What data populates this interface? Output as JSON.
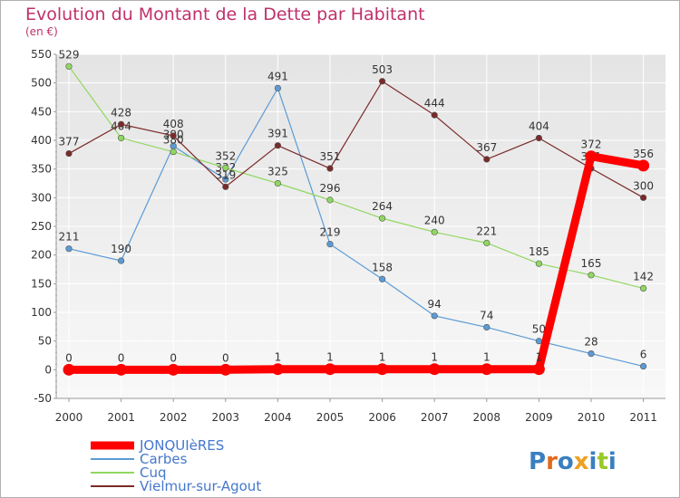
{
  "chart_data": {
    "type": "line",
    "title": "Evolution du Montant de la Dette par Habitant",
    "subtitle": "(en €)",
    "xlabel": "",
    "ylabel": "",
    "x": [
      "2000",
      "2001",
      "2002",
      "2003",
      "2004",
      "2005",
      "2006",
      "2007",
      "2008",
      "2009",
      "2010",
      "2011"
    ],
    "ylim": [
      -50,
      550
    ],
    "yticks": [
      -50,
      0,
      50,
      100,
      150,
      200,
      250,
      300,
      350,
      400,
      450,
      500,
      550
    ],
    "grid": true,
    "legend_position": "bottom-left",
    "series": [
      {
        "name": "JONQUIèRES",
        "color": "#ff0000",
        "values": [
          0,
          0,
          0,
          0,
          1,
          1,
          1,
          1,
          1,
          1,
          372,
          356
        ]
      },
      {
        "name": "Carbes",
        "color": "#5b9bd5",
        "values": [
          211,
          190,
          390,
          332,
          491,
          219,
          158,
          94,
          74,
          50,
          28,
          6
        ]
      },
      {
        "name": "Cuq",
        "color": "#90d860",
        "values": [
          529,
          404,
          380,
          352,
          325,
          296,
          264,
          240,
          221,
          185,
          165,
          142
        ]
      },
      {
        "name": "Vielmur-sur-Agout",
        "color": "#7b2a2a",
        "values": [
          377,
          428,
          408,
          319,
          391,
          351,
          503,
          444,
          367,
          404,
          351,
          300
        ]
      }
    ],
    "watermark": "Proxiti"
  }
}
